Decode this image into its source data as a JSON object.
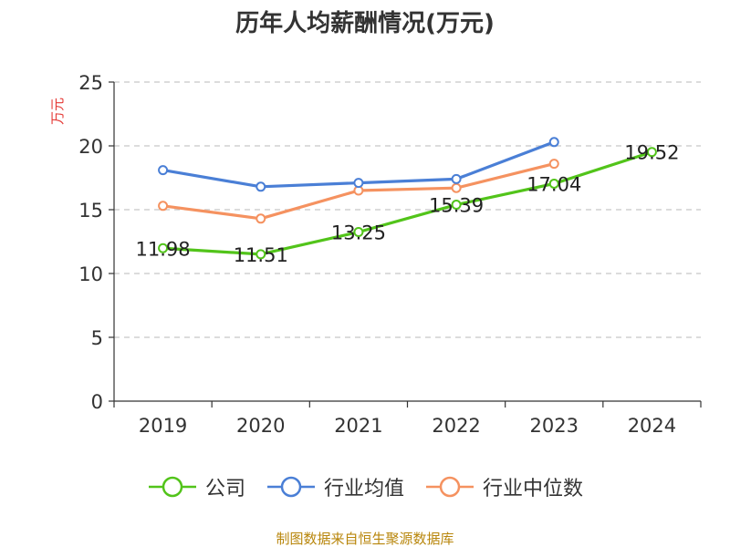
{
  "chart_data": {
    "type": "line",
    "title": "历年人均薪酬情况(万元)",
    "ylabel": "万元",
    "xlabel": "",
    "categories": [
      "2019",
      "2020",
      "2021",
      "2022",
      "2023",
      "2024"
    ],
    "ylim": [
      0,
      25
    ],
    "yticks": [
      "0",
      "5",
      "10",
      "15",
      "20",
      "25"
    ],
    "grid": true,
    "legend_position": "bottom",
    "series": [
      {
        "name": "公司",
        "color": "#52c41a",
        "values": [
          11.98,
          11.51,
          13.25,
          15.39,
          17.04,
          19.52
        ],
        "labels": [
          "11.98",
          "11.51",
          "13.25",
          "15.39",
          "17.04",
          "19.52"
        ]
      },
      {
        "name": "行业均值",
        "color": "#4a7fd6",
        "values": [
          18.1,
          16.8,
          17.1,
          17.4,
          20.3,
          null
        ],
        "labels": []
      },
      {
        "name": "行业中位数",
        "color": "#f59260",
        "values": [
          15.3,
          14.3,
          16.5,
          16.7,
          18.6,
          null
        ],
        "labels": []
      }
    ]
  },
  "source_text": "制图数据来自恒生聚源数据库"
}
